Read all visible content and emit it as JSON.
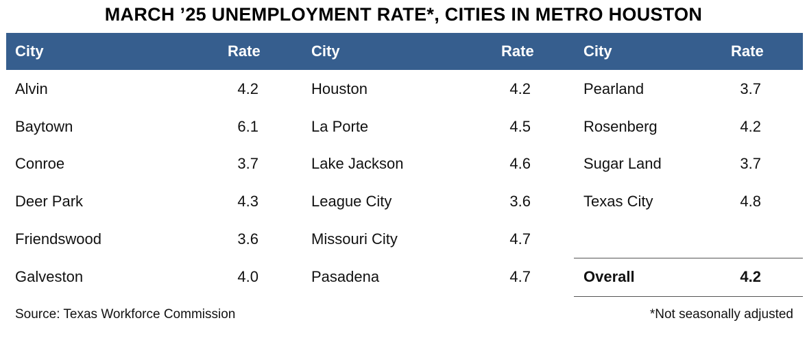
{
  "title": "MARCH ’25 UNEMPLOYMENT RATE*, CITIES IN METRO HOUSTON",
  "header": {
    "city_label": "City",
    "rate_label": "Rate"
  },
  "columns": [
    {
      "rows": [
        {
          "city": "Alvin",
          "rate": "4.2"
        },
        {
          "city": "Baytown",
          "rate": "6.1"
        },
        {
          "city": "Conroe",
          "rate": "3.7"
        },
        {
          "city": "Deer Park",
          "rate": "4.3"
        },
        {
          "city": "Friendswood",
          "rate": "3.6"
        },
        {
          "city": "Galveston",
          "rate": "4.0"
        }
      ]
    },
    {
      "rows": [
        {
          "city": "Houston",
          "rate": "4.2"
        },
        {
          "city": "La Porte",
          "rate": "4.5"
        },
        {
          "city": "Lake Jackson",
          "rate": "4.6"
        },
        {
          "city": "League City",
          "rate": "3.6"
        },
        {
          "city": "Missouri City",
          "rate": "4.7"
        },
        {
          "city": "Pasadena",
          "rate": "4.7"
        }
      ]
    },
    {
      "rows": [
        {
          "city": "Pearland",
          "rate": "3.7"
        },
        {
          "city": "Rosenberg",
          "rate": "4.2"
        },
        {
          "city": "Sugar Land",
          "rate": "3.7"
        },
        {
          "city": "Texas City",
          "rate": "4.8"
        }
      ]
    }
  ],
  "overall": {
    "label": "Overall",
    "rate": "4.2"
  },
  "source": "Source: Texas Workforce Commission",
  "note": "*Not seasonally adjusted",
  "colors": {
    "header_bg": "#365e8e",
    "header_text": "#ffffff"
  }
}
